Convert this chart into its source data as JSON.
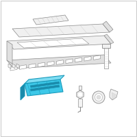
{
  "bg_color": "#ffffff",
  "border_color": "#cccccc",
  "blue_fill": "#3dc8e8",
  "blue_stroke": "#1a9abb",
  "blue_light": "#7ddcf2",
  "blue_dark": "#1a8aaa",
  "gray_stroke": "#888888",
  "light_gray": "#cccccc",
  "mid_gray": "#aaaaaa",
  "fill_gray": "#f0f0f0",
  "fill_gray2": "#e0e0e0",
  "white": "#ffffff",
  "fig_width": 2.0,
  "fig_height": 2.0,
  "dpi": 100
}
